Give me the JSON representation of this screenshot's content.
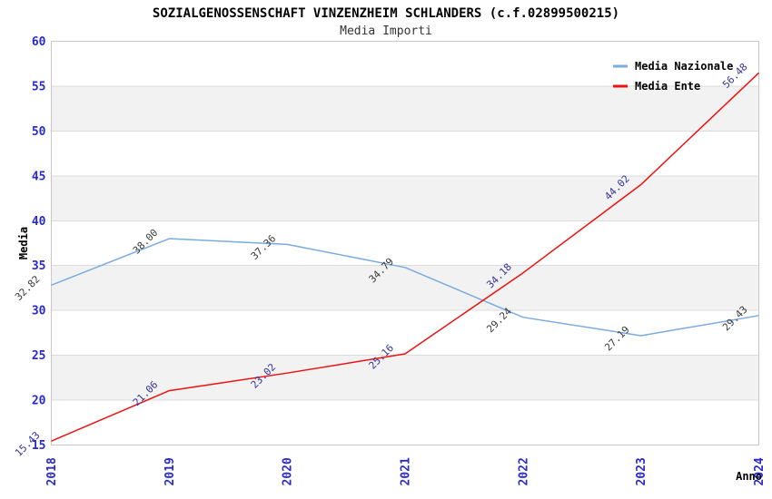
{
  "title": "SOZIALGENOSSENSCHAFT VINZENZHEIM SCHLANDERS (c.f.02899500215)",
  "subtitle": "Media Importi",
  "chart_data": {
    "type": "line",
    "title": "SOZIALGENOSSENSCHAFT VINZENZHEIM SCHLANDERS (c.f.02899500215)",
    "subtitle": "Media Importi",
    "x": [
      "2018",
      "2019",
      "2020",
      "2021",
      "2022",
      "2023",
      "2024"
    ],
    "xlabel": "Anno",
    "ylabel": "Media",
    "ylim": [
      15,
      60
    ],
    "ytick_step": 5,
    "grid": "horizontal-bands",
    "legend_position": "top-right",
    "data_label_decimals": 2,
    "series": [
      {
        "name": "Media Nazionale",
        "color": "#79ACE1",
        "label_color": "#3A3A3A",
        "values": [
          32.82,
          38.0,
          37.36,
          34.79,
          29.24,
          27.19,
          29.43
        ]
      },
      {
        "name": "Media Ente",
        "color": "#EE1111",
        "label_color": "#333399",
        "values": [
          15.43,
          21.06,
          23.02,
          25.16,
          34.18,
          44.02,
          56.48
        ]
      }
    ],
    "colors": {
      "axis_text": "#2929CC",
      "band": "#F2F2F2",
      "grid": "#DCDCDC",
      "border": "#C8C8C8",
      "background": "#FFFFFF"
    }
  }
}
